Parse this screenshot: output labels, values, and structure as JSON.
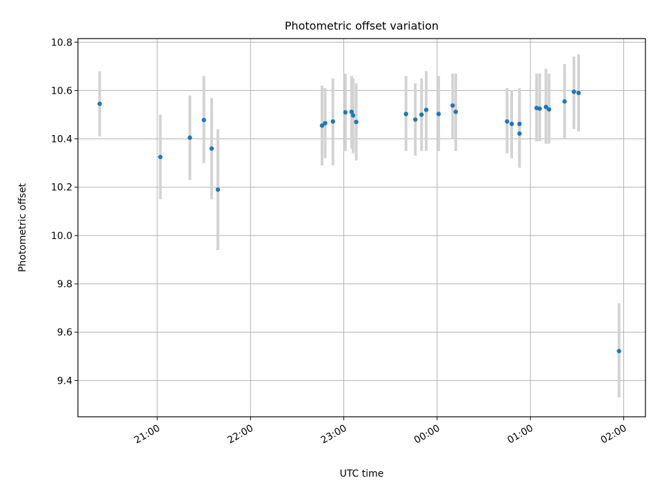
{
  "chart_data": {
    "type": "scatter",
    "title": "Photometric offset variation",
    "xlabel": "UTC time",
    "ylabel": "Photometric offset",
    "xlim": [
      "20:09",
      "02:14"
    ],
    "ylim": [
      9.25,
      10.815
    ],
    "grid": true,
    "x_ticks": [
      "21:00",
      "22:00",
      "23:00",
      "00:00",
      "01:00",
      "02:00"
    ],
    "y_ticks": [
      "9.4",
      "9.6",
      "9.8",
      "10.0",
      "10.2",
      "10.4",
      "10.6",
      "10.8"
    ],
    "colors": {
      "point": "#1f77b4",
      "errorbar": "#d3d3d3",
      "grid": "#b0b0b0"
    },
    "points": [
      {
        "x": "20:23",
        "y": 10.545,
        "ylo": 10.41,
        "yhi": 10.68
      },
      {
        "x": "21:02",
        "y": 10.325,
        "ylo": 10.15,
        "yhi": 10.5
      },
      {
        "x": "21:21",
        "y": 10.405,
        "ylo": 10.23,
        "yhi": 10.58
      },
      {
        "x": "21:30",
        "y": 10.478,
        "ylo": 10.3,
        "yhi": 10.66
      },
      {
        "x": "21:35",
        "y": 10.36,
        "ylo": 10.15,
        "yhi": 10.57
      },
      {
        "x": "21:39",
        "y": 10.19,
        "ylo": 9.94,
        "yhi": 10.44
      },
      {
        "x": "22:46",
        "y": 10.455,
        "ylo": 10.29,
        "yhi": 10.62
      },
      {
        "x": "22:48",
        "y": 10.465,
        "ylo": 10.32,
        "yhi": 10.61
      },
      {
        "x": "22:53",
        "y": 10.472,
        "ylo": 10.29,
        "yhi": 10.65
      },
      {
        "x": "23:01",
        "y": 10.51,
        "ylo": 10.35,
        "yhi": 10.67
      },
      {
        "x": "23:05",
        "y": 10.512,
        "ylo": 10.36,
        "yhi": 10.66
      },
      {
        "x": "23:06",
        "y": 10.497,
        "ylo": 10.34,
        "yhi": 10.65
      },
      {
        "x": "23:08",
        "y": 10.47,
        "ylo": 10.31,
        "yhi": 10.63
      },
      {
        "x": "23:40",
        "y": 10.503,
        "ylo": 10.35,
        "yhi": 10.66
      },
      {
        "x": "23:46",
        "y": 10.48,
        "ylo": 10.33,
        "yhi": 10.63
      },
      {
        "x": "23:50",
        "y": 10.5,
        "ylo": 10.35,
        "yhi": 10.65
      },
      {
        "x": "23:53",
        "y": 10.52,
        "ylo": 10.35,
        "yhi": 10.68
      },
      {
        "x": "00:01",
        "y": 10.503,
        "ylo": 10.35,
        "yhi": 10.66
      },
      {
        "x": "00:10",
        "y": 10.538,
        "ylo": 10.4,
        "yhi": 10.67
      },
      {
        "x": "00:12",
        "y": 10.512,
        "ylo": 10.35,
        "yhi": 10.67
      },
      {
        "x": "00:45",
        "y": 10.472,
        "ylo": 10.34,
        "yhi": 10.61
      },
      {
        "x": "00:48",
        "y": 10.462,
        "ylo": 10.32,
        "yhi": 10.6
      },
      {
        "x": "00:53",
        "y": 10.422,
        "ylo": 10.28,
        "yhi": 10.56
      },
      {
        "x": "00:53",
        "y": 10.462,
        "ylo": 10.31,
        "yhi": 10.61
      },
      {
        "x": "01:04",
        "y": 10.528,
        "ylo": 10.39,
        "yhi": 10.67
      },
      {
        "x": "01:06",
        "y": 10.525,
        "ylo": 10.39,
        "yhi": 10.67
      },
      {
        "x": "01:10",
        "y": 10.532,
        "ylo": 10.38,
        "yhi": 10.69
      },
      {
        "x": "01:12",
        "y": 10.522,
        "ylo": 10.38,
        "yhi": 10.67
      },
      {
        "x": "01:22",
        "y": 10.555,
        "ylo": 10.4,
        "yhi": 10.71
      },
      {
        "x": "01:28",
        "y": 10.595,
        "ylo": 10.44,
        "yhi": 10.74
      },
      {
        "x": "01:31",
        "y": 10.59,
        "ylo": 10.43,
        "yhi": 10.75
      },
      {
        "x": "01:57",
        "y": 9.522,
        "ylo": 9.33,
        "yhi": 9.72
      }
    ]
  }
}
